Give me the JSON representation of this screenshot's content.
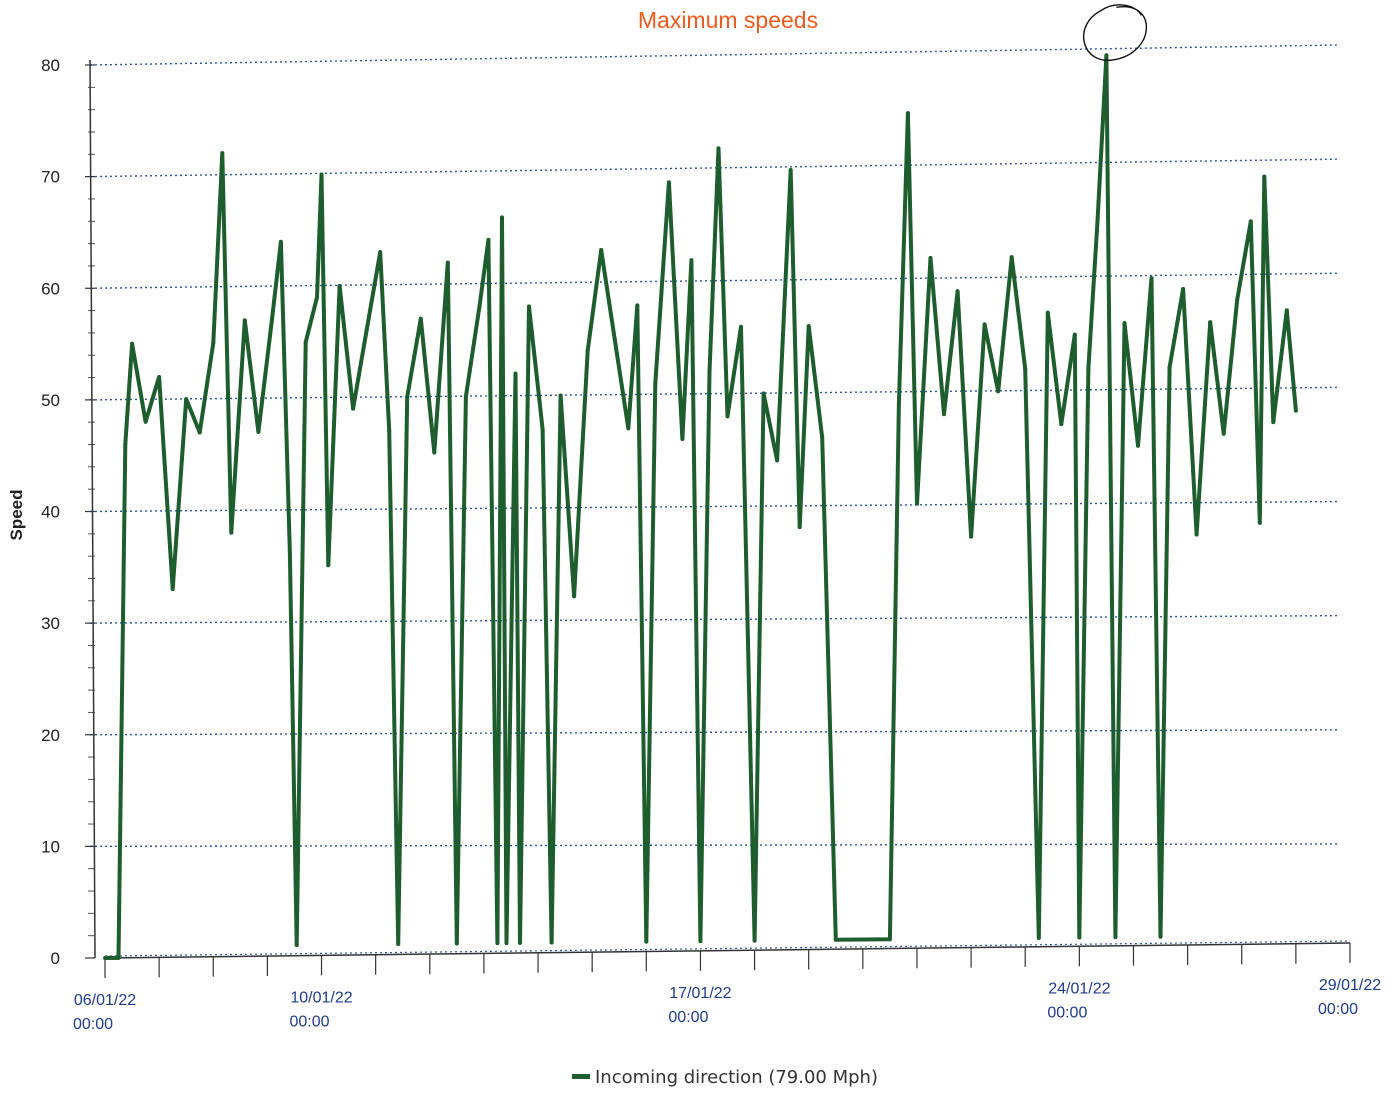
{
  "chart_data": {
    "type": "line",
    "title": "Maximum speeds",
    "ylabel": "Speed",
    "xlabel": "",
    "ylim": [
      0,
      80
    ],
    "yticks": [
      "0",
      "10",
      "20",
      "30",
      "40",
      "50",
      "60",
      "70",
      "80"
    ],
    "xlim": [
      "2022-01-06T00:00",
      "2022-01-29T00:00"
    ],
    "xticks": [
      {
        "date": "06/01/22",
        "time": "00:00",
        "at": "2022-01-06T00:00"
      },
      {
        "date": "10/01/22",
        "time": "00:00",
        "at": "2022-01-10T00:00"
      },
      {
        "date": "17/01/22",
        "time": "00:00",
        "at": "2022-01-17T00:00"
      },
      {
        "date": "24/01/22",
        "time": "00:00",
        "at": "2022-01-24T00:00"
      },
      {
        "date": "29/01/22",
        "time": "00:00",
        "at": "2022-01-29T00:00"
      }
    ],
    "grid": true,
    "legend_position": "bottom-center",
    "series": [
      {
        "name": "Incoming direction (79.00 Mph)",
        "color": "#1e5e2e",
        "points": [
          [
            "2022-01-06T00:00",
            0
          ],
          [
            "2022-01-06T06:00",
            0
          ],
          [
            "2022-01-06T09:00",
            46
          ],
          [
            "2022-01-06T12:00",
            55
          ],
          [
            "2022-01-06T18:00",
            48
          ],
          [
            "2022-01-07T00:00",
            52
          ],
          [
            "2022-01-07T06:00",
            33
          ],
          [
            "2022-01-07T12:00",
            50
          ],
          [
            "2022-01-07T18:00",
            47
          ],
          [
            "2022-01-08T00:00",
            55
          ],
          [
            "2022-01-08T04:00",
            72
          ],
          [
            "2022-01-08T08:00",
            38
          ],
          [
            "2022-01-08T14:00",
            57
          ],
          [
            "2022-01-08T20:00",
            47
          ],
          [
            "2022-01-09T02:00",
            57
          ],
          [
            "2022-01-09T06:00",
            64
          ],
          [
            "2022-01-09T10:00",
            36
          ],
          [
            "2022-01-09T13:00",
            1
          ],
          [
            "2022-01-09T17:00",
            55
          ],
          [
            "2022-01-09T22:00",
            59
          ],
          [
            "2022-01-10T00:00",
            70
          ],
          [
            "2022-01-10T03:00",
            35
          ],
          [
            "2022-01-10T08:00",
            60
          ],
          [
            "2022-01-10T14:00",
            49
          ],
          [
            "2022-01-10T20:00",
            56
          ],
          [
            "2022-01-11T02:00",
            63
          ],
          [
            "2022-01-11T06:00",
            47
          ],
          [
            "2022-01-11T10:00",
            1
          ],
          [
            "2022-01-11T14:00",
            50
          ],
          [
            "2022-01-11T20:00",
            57
          ],
          [
            "2022-01-12T02:00",
            45
          ],
          [
            "2022-01-12T08:00",
            62
          ],
          [
            "2022-01-12T12:00",
            1
          ],
          [
            "2022-01-12T16:00",
            50
          ],
          [
            "2022-01-12T22:00",
            58
          ],
          [
            "2022-01-13T02:00",
            64
          ],
          [
            "2022-01-13T06:00",
            1
          ],
          [
            "2022-01-13T08:00",
            66
          ],
          [
            "2022-01-13T10:00",
            1
          ],
          [
            "2022-01-13T14:00",
            52
          ],
          [
            "2022-01-13T16:00",
            1
          ],
          [
            "2022-01-13T20:00",
            58
          ],
          [
            "2022-01-14T02:00",
            47
          ],
          [
            "2022-01-14T06:00",
            1
          ],
          [
            "2022-01-14T10:00",
            50
          ],
          [
            "2022-01-14T16:00",
            32
          ],
          [
            "2022-01-14T22:00",
            54
          ],
          [
            "2022-01-15T04:00",
            63
          ],
          [
            "2022-01-15T10:00",
            55
          ],
          [
            "2022-01-15T16:00",
            47
          ],
          [
            "2022-01-15T20:00",
            58
          ],
          [
            "2022-01-16T00:00",
            1
          ],
          [
            "2022-01-16T04:00",
            51
          ],
          [
            "2022-01-16T10:00",
            69
          ],
          [
            "2022-01-16T16:00",
            46
          ],
          [
            "2022-01-16T20:00",
            62
          ],
          [
            "2022-01-17T00:00",
            1
          ],
          [
            "2022-01-17T04:00",
            52
          ],
          [
            "2022-01-17T08:00",
            72
          ],
          [
            "2022-01-17T12:00",
            48
          ],
          [
            "2022-01-17T18:00",
            56
          ],
          [
            "2022-01-18T00:00",
            1
          ],
          [
            "2022-01-18T04:00",
            50
          ],
          [
            "2022-01-18T10:00",
            44
          ],
          [
            "2022-01-18T16:00",
            70
          ],
          [
            "2022-01-18T20:00",
            38
          ],
          [
            "2022-01-19T00:00",
            56
          ],
          [
            "2022-01-19T06:00",
            46
          ],
          [
            "2022-01-19T12:00",
            1
          ],
          [
            "2022-01-20T12:00",
            1
          ],
          [
            "2022-01-20T16:00",
            49
          ],
          [
            "2022-01-20T20:00",
            75
          ],
          [
            "2022-01-21T00:00",
            40
          ],
          [
            "2022-01-21T06:00",
            62
          ],
          [
            "2022-01-21T12:00",
            48
          ],
          [
            "2022-01-21T18:00",
            59
          ],
          [
            "2022-01-22T00:00",
            37
          ],
          [
            "2022-01-22T06:00",
            56
          ],
          [
            "2022-01-22T12:00",
            50
          ],
          [
            "2022-01-22T18:00",
            62
          ],
          [
            "2022-01-23T00:00",
            52
          ],
          [
            "2022-01-23T06:00",
            1
          ],
          [
            "2022-01-23T10:00",
            57
          ],
          [
            "2022-01-23T16:00",
            47
          ],
          [
            "2022-01-23T22:00",
            55
          ],
          [
            "2022-01-24T00:00",
            1
          ],
          [
            "2022-01-24T04:00",
            52
          ],
          [
            "2022-01-24T08:00",
            65
          ],
          [
            "2022-01-24T12:00",
            80
          ],
          [
            "2022-01-24T16:00",
            1
          ],
          [
            "2022-01-24T20:00",
            56
          ],
          [
            "2022-01-25T02:00",
            45
          ],
          [
            "2022-01-25T08:00",
            60
          ],
          [
            "2022-01-25T12:00",
            1
          ],
          [
            "2022-01-25T16:00",
            52
          ],
          [
            "2022-01-25T22:00",
            59
          ],
          [
            "2022-01-26T04:00",
            37
          ],
          [
            "2022-01-26T10:00",
            56
          ],
          [
            "2022-01-26T16:00",
            46
          ],
          [
            "2022-01-26T22:00",
            58
          ],
          [
            "2022-01-27T04:00",
            65
          ],
          [
            "2022-01-27T08:00",
            38
          ],
          [
            "2022-01-27T10:00",
            69
          ],
          [
            "2022-01-27T14:00",
            47
          ],
          [
            "2022-01-27T20:00",
            57
          ],
          [
            "2022-01-28T00:00",
            48
          ]
        ]
      }
    ],
    "annotations": [
      {
        "type": "hand-drawn-circle",
        "at": "2022-01-24T12:00",
        "value": 80
      }
    ]
  }
}
